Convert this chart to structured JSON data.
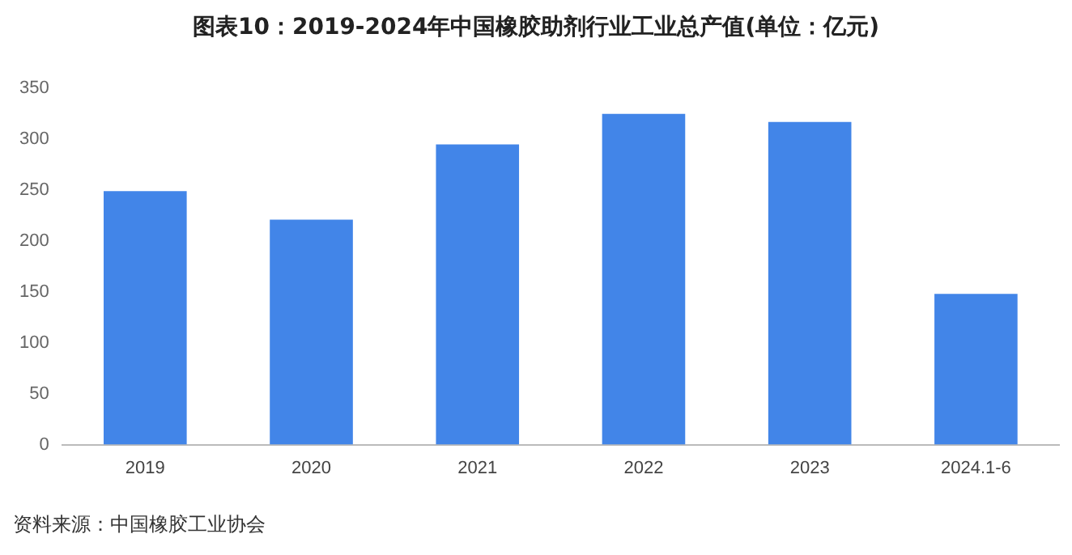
{
  "chart_data": {
    "type": "bar",
    "title": "图表10：2019-2024年中国橡胶助剂行业工业总产值(单位：亿元)",
    "categories": [
      "2019",
      "2020",
      "2021",
      "2022",
      "2023",
      "2024.1-6"
    ],
    "values": [
      249,
      221,
      295,
      325,
      317,
      148
    ],
    "color": "#4285e8",
    "ylim": [
      0,
      350
    ],
    "yticks": [
      0,
      50,
      100,
      150,
      200,
      250,
      300,
      350
    ],
    "grid": false,
    "annotations": [
      "资料来源：中国橡胶工业协会"
    ]
  }
}
